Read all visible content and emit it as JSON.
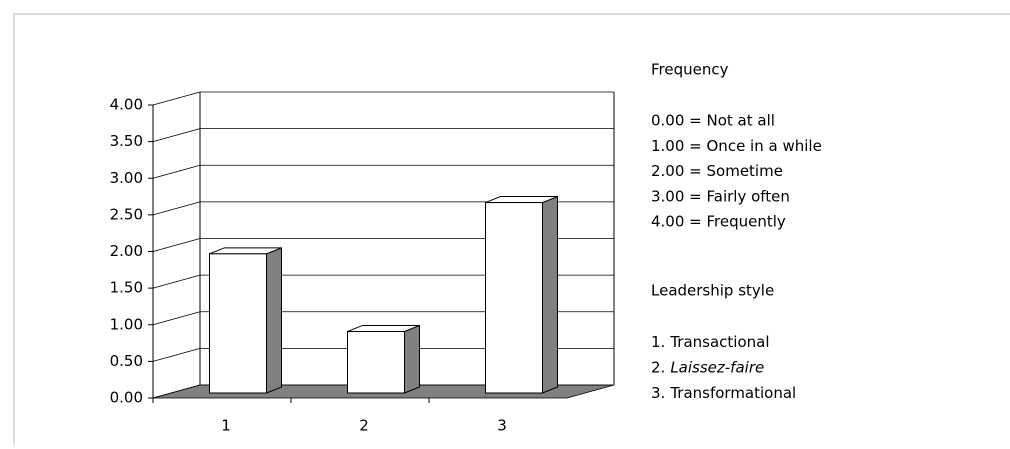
{
  "chart_data": {
    "type": "bar",
    "categories": [
      "1",
      "2",
      "3"
    ],
    "values": [
      1.9,
      0.84,
      2.6
    ],
    "color": "#ffffff",
    "side_color": "#808080",
    "ylim": [
      0,
      4
    ],
    "yticks": [
      {
        "value": 0,
        "label": "0.00"
      },
      {
        "value": 0.5,
        "label": "0.50"
      },
      {
        "value": 1,
        "label": "1.00"
      },
      {
        "value": 1.5,
        "label": "1.50"
      },
      {
        "value": 2,
        "label": "2.00"
      },
      {
        "value": 2.5,
        "label": "2.50"
      },
      {
        "value": 3,
        "label": "3.00"
      },
      {
        "value": 3.5,
        "label": "3.50"
      },
      {
        "value": 4,
        "label": "4.00"
      }
    ],
    "grid": true,
    "legend": {
      "frequency_title": "Frequency",
      "frequency_items": [
        "0.00 = Not at all",
        "1.00 = Once in a while",
        "2.00 = Sometime",
        "3.00 = Fairly often",
        "4.00 = Frequently"
      ],
      "style_title": "Leadership style",
      "style_items": [
        {
          "number": "1.",
          "label": "Transactional"
        },
        {
          "number": "2.",
          "label": "Laissez-faire",
          "italic": true
        },
        {
          "number": "3.",
          "label": "Transformational"
        }
      ]
    }
  }
}
